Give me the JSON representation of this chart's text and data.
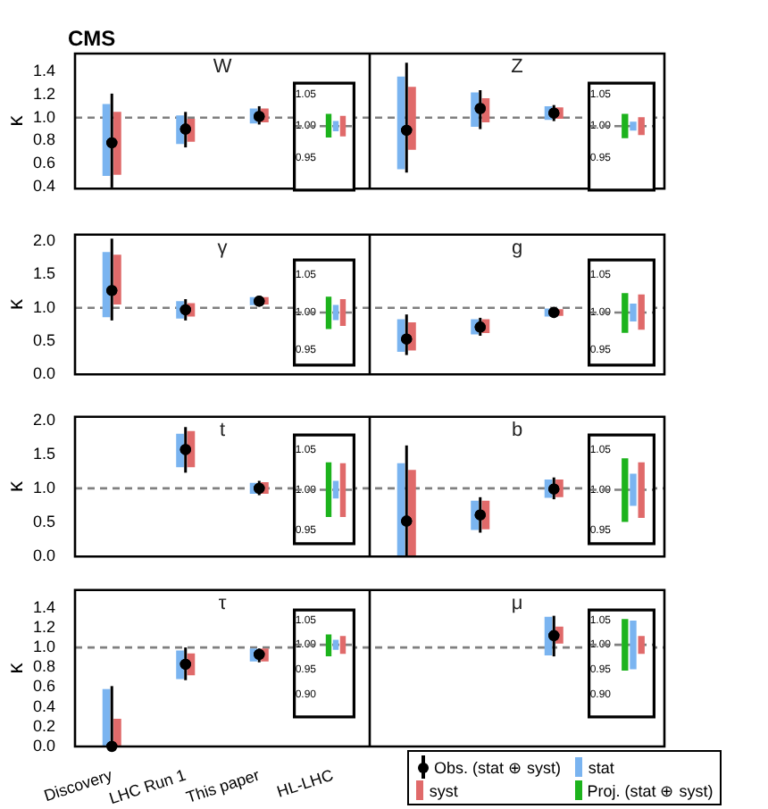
{
  "chart_data": [
    {
      "type": "bar",
      "title": "CMS",
      "annotations": [
        "W",
        "Z"
      ],
      "ylabel": "κ",
      "categories": [
        null,
        null,
        null,
        null,
        null,
        null,
        null,
        null
      ],
      "tick_labels": "y",
      "ylim": [
        0.38,
        1.56
      ],
      "yticks": [
        {
          "value": 0.4,
          "label": "0.4"
        },
        {
          "value": 0.6,
          "label": "0.6"
        },
        {
          "value": 0.8,
          "label": "0.8"
        },
        {
          "value": 1,
          "label": "1.0"
        },
        {
          "value": 1.2,
          "label": "1.2"
        },
        {
          "value": 1.4,
          "label": "1.4"
        }
      ],
      "marker": "circle",
      "ref_lines": [
        {
          "axis": "y",
          "value": 1,
          "color": "#808080",
          "line_style": "dashed"
        }
      ],
      "series": [
        {
          "type": "scatter",
          "color": "#000000",
          "values": [
            0.78,
            0.9,
            1.01,
            null,
            0.89,
            1.08,
            1.04,
            null
          ],
          "errors": [
            [
              0.39,
              1.21
            ],
            [
              0.74,
              1.05
            ],
            [
              0.94,
              1.1
            ],
            null,
            [
              0.52,
              1.48
            ],
            [
              0.9,
              1.24
            ],
            [
              0.97,
              1.11
            ],
            null
          ]
        },
        {
          "color": "#7ab4f0",
          "base": [
            0.49,
            0.77,
            0.95,
            null,
            0.55,
            0.92,
            0.98,
            null
          ],
          "values": [
            0.63,
            0.25,
            0.13,
            null,
            0.81,
            0.3,
            0.12,
            null
          ]
        },
        {
          "color": "#e06a6a",
          "base": [
            0.5,
            0.79,
            0.96,
            null,
            0.72,
            0.96,
            0.99,
            null
          ],
          "values": [
            0.55,
            0.2,
            0.12,
            null,
            0.55,
            0.21,
            0.1,
            null
          ]
        }
      ]
    },
    {
      "type": "bar",
      "categories": [
        null
      ],
      "tick_labels": "y",
      "ylim": [
        0.9,
        1.067
      ],
      "yticks": [
        {
          "value": 0.95,
          "label": "0.95"
        },
        {
          "value": 1,
          "label": "1.00"
        },
        {
          "value": 1.05,
          "label": "1.05"
        }
      ],
      "ref_lines": [
        {
          "axis": "y",
          "value": 1,
          "color": "#808080",
          "line_style": "dashed"
        }
      ],
      "series": [
        {
          "color": "#1db31d",
          "base": [
            0.982
          ],
          "values": [
            0.037
          ]
        },
        {
          "color": "#7ab4f0",
          "base": [
            0.992
          ],
          "values": [
            0.016
          ]
        },
        {
          "color": "#e06a6a",
          "base": [
            0.984
          ],
          "values": [
            0.032
          ]
        }
      ]
    },
    {
      "type": "bar",
      "categories": [
        null
      ],
      "tick_labels": "y",
      "ylim": [
        0.9,
        1.067
      ],
      "yticks": [
        {
          "value": 0.95,
          "label": "0.95"
        },
        {
          "value": 1,
          "label": "1.00"
        },
        {
          "value": 1.05,
          "label": "1.05"
        }
      ],
      "ref_lines": [
        {
          "axis": "y",
          "value": 1,
          "color": "#808080",
          "line_style": "dashed"
        }
      ],
      "series": [
        {
          "color": "#1db31d",
          "base": [
            0.981
          ],
          "values": [
            0.038
          ]
        },
        {
          "color": "#7ab4f0",
          "base": [
            0.993
          ],
          "values": [
            0.014
          ]
        },
        {
          "color": "#e06a6a",
          "base": [
            0.986
          ],
          "values": [
            0.028
          ]
        }
      ]
    },
    {
      "type": "bar",
      "annotations": [
        "γ",
        "g"
      ],
      "ylabel": "κ",
      "categories": [
        null,
        null,
        null,
        null,
        null,
        null,
        null,
        null
      ],
      "tick_labels": "y",
      "ylim": [
        0,
        2.1
      ],
      "yticks": [
        {
          "value": 0,
          "label": "0.0"
        },
        {
          "value": 0.5,
          "label": "0.5"
        },
        {
          "value": 1,
          "label": "1.0"
        },
        {
          "value": 1.5,
          "label": "1.5"
        },
        {
          "value": 2,
          "label": "2.0"
        }
      ],
      "marker": "circle",
      "ref_lines": [
        {
          "axis": "y",
          "value": 1,
          "color": "#808080",
          "line_style": "dashed"
        }
      ],
      "series": [
        {
          "type": "scatter",
          "color": "#000000",
          "values": [
            1.26,
            0.97,
            1.1,
            null,
            0.53,
            0.71,
            0.93,
            null
          ],
          "errors": [
            [
              0.81,
              2.04
            ],
            [
              0.81,
              1.13
            ],
            [
              1.03,
              1.17
            ],
            null,
            [
              0.29,
              0.9
            ],
            [
              0.58,
              0.85
            ],
            [
              0.87,
              0.99
            ],
            null
          ]
        },
        {
          "color": "#7ab4f0",
          "base": [
            0.86,
            0.84,
            1.04,
            null,
            0.34,
            0.6,
            0.87,
            null
          ],
          "values": [
            0.98,
            0.26,
            0.12,
            null,
            0.49,
            0.23,
            0.12,
            null
          ]
        },
        {
          "color": "#e06a6a",
          "base": [
            1.05,
            0.87,
            1.05,
            null,
            0.36,
            0.62,
            0.88,
            null
          ],
          "values": [
            0.75,
            0.2,
            0.11,
            null,
            0.42,
            0.21,
            0.1,
            null
          ]
        }
      ]
    },
    {
      "type": "bar",
      "categories": [
        null
      ],
      "tick_labels": "y",
      "ylim": [
        0.93,
        1.07
      ],
      "yticks": [
        {
          "value": 0.95,
          "label": "0.95"
        },
        {
          "value": 1,
          "label": "1.00"
        },
        {
          "value": 1.05,
          "label": "1.05"
        }
      ],
      "ref_lines": [
        {
          "axis": "y",
          "value": 1,
          "color": "#808080",
          "line_style": "dashed"
        }
      ],
      "series": [
        {
          "color": "#1db31d",
          "base": [
            0.978
          ],
          "values": [
            0.043
          ]
        },
        {
          "color": "#7ab4f0",
          "base": [
            0.99
          ],
          "values": [
            0.02
          ]
        },
        {
          "color": "#e06a6a",
          "base": [
            0.982
          ],
          "values": [
            0.036
          ]
        }
      ]
    },
    {
      "type": "bar",
      "categories": [
        null
      ],
      "tick_labels": "y",
      "ylim": [
        0.93,
        1.07
      ],
      "yticks": [
        {
          "value": 0.95,
          "label": "0.95"
        },
        {
          "value": 1,
          "label": "1.00"
        },
        {
          "value": 1.05,
          "label": "1.05"
        }
      ],
      "ref_lines": [
        {
          "axis": "y",
          "value": 1,
          "color": "#808080",
          "line_style": "dashed"
        }
      ],
      "series": [
        {
          "color": "#1db31d",
          "base": [
            0.973
          ],
          "values": [
            0.053
          ]
        },
        {
          "color": "#7ab4f0",
          "base": [
            0.988
          ],
          "values": [
            0.024
          ]
        },
        {
          "color": "#e06a6a",
          "base": [
            0.977
          ],
          "values": [
            0.047
          ]
        }
      ]
    },
    {
      "type": "bar",
      "annotations": [
        "t",
        "b"
      ],
      "ylabel": "κ",
      "categories": [
        null,
        null,
        null,
        null,
        null,
        null,
        null,
        null
      ],
      "tick_labels": "y",
      "ylim": [
        0,
        2.05
      ],
      "yticks": [
        {
          "value": 0,
          "label": "0.0"
        },
        {
          "value": 0.5,
          "label": "0.5"
        },
        {
          "value": 1,
          "label": "1.0"
        },
        {
          "value": 1.5,
          "label": "1.5"
        },
        {
          "value": 2,
          "label": "2.0"
        }
      ],
      "marker": "circle",
      "ref_lines": [
        {
          "axis": "y",
          "value": 1,
          "color": "#808080",
          "line_style": "dashed"
        }
      ],
      "series": [
        {
          "type": "scatter",
          "color": "#000000",
          "values": [
            null,
            1.57,
            1.0,
            null,
            0.52,
            0.61,
            0.99,
            null
          ],
          "errors": [
            null,
            [
              1.23,
              1.9
            ],
            [
              0.9,
              1.11
            ],
            null,
            [
              0,
              1.63
            ],
            [
              0.35,
              0.87
            ],
            [
              0.84,
              1.16
            ],
            null
          ]
        },
        {
          "color": "#7ab4f0",
          "base": [
            null,
            1.31,
            0.92,
            null,
            0,
            0.39,
            0.86,
            null
          ],
          "values": [
            null,
            0.49,
            0.16,
            null,
            1.37,
            0.43,
            0.27,
            null
          ]
        },
        {
          "color": "#e06a6a",
          "base": [
            null,
            1.31,
            0.92,
            null,
            0,
            0.4,
            0.87,
            null
          ],
          "values": [
            null,
            0.53,
            0.17,
            null,
            1.27,
            0.42,
            0.26,
            null
          ]
        }
      ]
    },
    {
      "type": "bar",
      "categories": [
        null
      ],
      "tick_labels": "y",
      "ylim": [
        0.933,
        1.068
      ],
      "yticks": [
        {
          "value": 0.95,
          "label": "0.95"
        },
        {
          "value": 1,
          "label": "1.00"
        },
        {
          "value": 1.05,
          "label": "1.05"
        }
      ],
      "ref_lines": [
        {
          "axis": "y",
          "value": 1,
          "color": "#808080",
          "line_style": "dashed"
        }
      ],
      "series": [
        {
          "color": "#1db31d",
          "base": [
            0.966
          ],
          "values": [
            0.068
          ]
        },
        {
          "color": "#7ab4f0",
          "base": [
            0.989
          ],
          "values": [
            0.022
          ]
        },
        {
          "color": "#e06a6a",
          "base": [
            0.966
          ],
          "values": [
            0.067
          ]
        }
      ]
    },
    {
      "type": "bar",
      "categories": [
        null
      ],
      "tick_labels": "y",
      "ylim": [
        0.933,
        1.068
      ],
      "yticks": [
        {
          "value": 0.95,
          "label": "0.95"
        },
        {
          "value": 1,
          "label": "1.00"
        },
        {
          "value": 1.05,
          "label": "1.05"
        }
      ],
      "ref_lines": [
        {
          "axis": "y",
          "value": 1,
          "color": "#808080",
          "line_style": "dashed"
        }
      ],
      "series": [
        {
          "color": "#1db31d",
          "base": [
            0.96
          ],
          "values": [
            0.079
          ]
        },
        {
          "color": "#7ab4f0",
          "base": [
            0.98
          ],
          "values": [
            0.04
          ]
        },
        {
          "color": "#e06a6a",
          "base": [
            0.965
          ],
          "values": [
            0.069
          ]
        }
      ]
    },
    {
      "type": "bar",
      "annotations": [
        "τ",
        "μ"
      ],
      "ylabel": "κ",
      "categories": [
        "Discovery",
        "LHC Run 1",
        "This paper",
        "HL-LHC",
        null,
        null,
        null,
        null
      ],
      "legend": "bottom right",
      "ylim": [
        0,
        1.58
      ],
      "yticks": [
        {
          "value": 0,
          "label": "0.0"
        },
        {
          "value": 0.2,
          "label": "0.2"
        },
        {
          "value": 0.4,
          "label": "0.4"
        },
        {
          "value": 0.6,
          "label": "0.6"
        },
        {
          "value": 0.8,
          "label": "0.8"
        },
        {
          "value": 1,
          "label": "1.0"
        },
        {
          "value": 1.2,
          "label": "1.2"
        },
        {
          "value": 1.4,
          "label": "1.4"
        }
      ],
      "marker": "circle",
      "ref_lines": [
        {
          "axis": "y",
          "value": 1,
          "color": "#808080",
          "line_style": "dashed"
        }
      ],
      "series": [
        {
          "type": "scatter",
          "name": "Obs. (stat ⊕ syst)",
          "color": "#000000",
          "values": [
            0,
            0.83,
            0.93,
            null,
            null,
            null,
            1.12,
            null
          ],
          "errors": [
            [
              0,
              0.61
            ],
            [
              0.67,
              1.0
            ],
            [
              0.85,
              0.99
            ],
            null,
            null,
            null,
            [
              0.91,
              1.32
            ],
            null
          ]
        },
        {
          "name": "stat",
          "color": "#7ab4f0",
          "base": [
            0,
            0.68,
            0.86,
            null,
            null,
            null,
            0.92,
            null
          ],
          "values": [
            0.58,
            0.29,
            0.13,
            null,
            null,
            null,
            0.39,
            null
          ]
        },
        {
          "name": "syst",
          "color": "#e06a6a",
          "base": [
            0,
            0.72,
            0.86,
            null,
            null,
            null,
            1.04,
            null
          ],
          "values": [
            0.28,
            0.22,
            0.13,
            null,
            null,
            null,
            0.17,
            null
          ]
        }
      ]
    },
    {
      "type": "bar",
      "categories": [
        null
      ],
      "tick_labels": "y",
      "ylim": [
        0.855,
        1.07
      ],
      "yticks": [
        {
          "value": 0.9,
          "label": "0.90"
        },
        {
          "value": 0.95,
          "label": "0.95"
        },
        {
          "value": 1,
          "label": "1.00"
        },
        {
          "value": 1.05,
          "label": "1.05"
        }
      ],
      "ref_lines": [
        {
          "axis": "y",
          "value": 1,
          "color": "#808080",
          "line_style": "dashed"
        }
      ],
      "series": [
        {
          "color": "#1db31d",
          "base": [
            0.977
          ],
          "values": [
            0.044
          ]
        },
        {
          "color": "#7ab4f0",
          "base": [
            0.99
          ],
          "values": [
            0.02
          ]
        },
        {
          "color": "#e06a6a",
          "base": [
            0.982
          ],
          "values": [
            0.036
          ]
        }
      ]
    },
    {
      "type": "bar",
      "categories": [
        null
      ],
      "tick_labels": "y",
      "legend": "bottom right",
      "ylim": [
        0.855,
        1.07
      ],
      "yticks": [
        {
          "value": 0.9,
          "label": "0.90"
        },
        {
          "value": 0.95,
          "label": "0.95"
        },
        {
          "value": 1,
          "label": "1.00"
        },
        {
          "value": 1.05,
          "label": "1.05"
        }
      ],
      "ref_lines": [
        {
          "axis": "y",
          "value": 1,
          "color": "#808080",
          "line_style": "dashed"
        }
      ],
      "series": [
        {
          "name": "Proj. (stat ⊕ syst)",
          "color": "#1db31d",
          "base": [
            0.948
          ],
          "values": [
            0.104
          ]
        },
        {
          "color": "#7ab4f0",
          "base": [
            0.951
          ],
          "values": [
            0.098
          ]
        },
        {
          "color": "#e06a6a",
          "base": [
            0.982
          ],
          "values": [
            0.036
          ]
        }
      ]
    }
  ]
}
